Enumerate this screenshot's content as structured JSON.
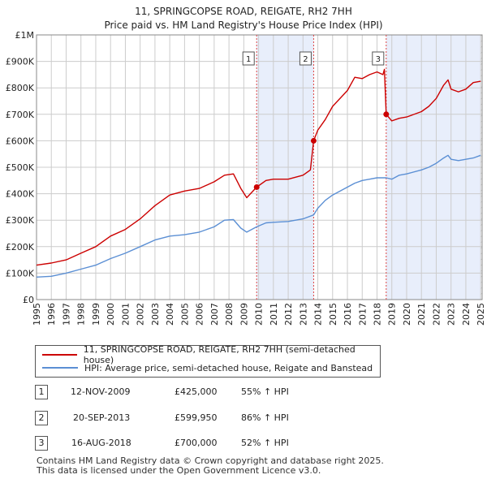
{
  "title": "11, SPRINGCOPSE ROAD, REIGATE, RH2 7HH",
  "subtitle": "Price paid vs. HM Land Registry's House Price Index (HPI)",
  "legend": {
    "property": "11, SPRINGCOPSE ROAD, REIGATE, RH2 7HH (semi-detached house)",
    "hpi": "HPI: Average price, semi-detached house, Reigate and Banstead"
  },
  "colors": {
    "property": "#cc0000",
    "hpi": "#5b8fd4",
    "shade": "#e8eefb",
    "grid": "#cccccc",
    "marker_line": "#dd4444"
  },
  "sales": [
    {
      "num": "1",
      "date": "12-NOV-2009",
      "price": "£425,000",
      "hpi": "55% ↑ HPI"
    },
    {
      "num": "2",
      "date": "20-SEP-2013",
      "price": "£599,950",
      "hpi": "86% ↑ HPI"
    },
    {
      "num": "3",
      "date": "16-AUG-2018",
      "price": "£700,000",
      "hpi": "52% ↑ HPI"
    }
  ],
  "footer": {
    "line1": "Contains HM Land Registry data © Crown copyright and database right 2025.",
    "line2": "This data is licensed under the Open Government Licence v3.0."
  },
  "chart_data": {
    "type": "line",
    "xlim": [
      1995,
      2025.1
    ],
    "ylim": [
      0,
      1000000
    ],
    "yticks": [
      {
        "v": 0,
        "label": "£0"
      },
      {
        "v": 100000,
        "label": "£100K"
      },
      {
        "v": 200000,
        "label": "£200K"
      },
      {
        "v": 300000,
        "label": "£300K"
      },
      {
        "v": 400000,
        "label": "£400K"
      },
      {
        "v": 500000,
        "label": "£500K"
      },
      {
        "v": 600000,
        "label": "£600K"
      },
      {
        "v": 700000,
        "label": "£700K"
      },
      {
        "v": 800000,
        "label": "£800K"
      },
      {
        "v": 900000,
        "label": "£900K"
      },
      {
        "v": 1000000,
        "label": "£1M"
      }
    ],
    "xticks": [
      "1995",
      "1996",
      "1997",
      "1998",
      "1999",
      "2000",
      "2001",
      "2002",
      "2003",
      "2004",
      "2005",
      "2006",
      "2007",
      "2008",
      "2009",
      "2010",
      "2011",
      "2012",
      "2013",
      "2014",
      "2015",
      "2016",
      "2017",
      "2018",
      "2019",
      "2020",
      "2021",
      "2022",
      "2023",
      "2024",
      "2025"
    ],
    "sale_markers": [
      {
        "label": "1",
        "x": 2009.87,
        "y": 425000
      },
      {
        "label": "2",
        "x": 2013.72,
        "y": 599950
      },
      {
        "label": "3",
        "x": 2018.62,
        "y": 700000
      }
    ],
    "shaded_ranges": [
      [
        2009.87,
        2013.72
      ],
      [
        2018.62,
        2025.0
      ]
    ],
    "hatched_from": 2025.0,
    "series": [
      {
        "name": "11, SPRINGCOPSE ROAD, REIGATE, RH2 7HH (semi-detached house)",
        "color": "#cc0000",
        "x": [
          1995,
          1996,
          1997,
          1998,
          1999,
          2000,
          2001,
          2002,
          2003,
          2004,
          2005,
          2006,
          2007,
          2007.7,
          2008.3,
          2008.8,
          2009.2,
          2009.87,
          2010.5,
          2011,
          2012,
          2013,
          2013.5,
          2013.72,
          2014,
          2014.5,
          2015,
          2016,
          2016.5,
          2017,
          2017.5,
          2018,
          2018.4,
          2018.5,
          2018.62,
          2019,
          2019.5,
          2020,
          2021,
          2021.5,
          2022,
          2022.5,
          2022.8,
          2023,
          2023.5,
          2024,
          2024.5,
          2025
        ],
        "y": [
          130000,
          138000,
          150000,
          175000,
          200000,
          240000,
          265000,
          305000,
          355000,
          395000,
          410000,
          420000,
          445000,
          470000,
          475000,
          420000,
          385000,
          425000,
          450000,
          455000,
          455000,
          470000,
          490000,
          599950,
          640000,
          680000,
          730000,
          790000,
          840000,
          835000,
          850000,
          860000,
          850000,
          870000,
          700000,
          675000,
          685000,
          690000,
          710000,
          730000,
          760000,
          810000,
          830000,
          795000,
          785000,
          795000,
          820000,
          825000
        ]
      },
      {
        "name": "HPI: Average price, semi-detached house, Reigate and Banstead",
        "color": "#5b8fd4",
        "x": [
          1995,
          1996,
          1997,
          1998,
          1999,
          2000,
          2001,
          2002,
          2003,
          2004,
          2005,
          2006,
          2007,
          2007.7,
          2008.3,
          2008.8,
          2009.2,
          2009.87,
          2010.5,
          2011,
          2012,
          2013,
          2013.72,
          2014,
          2014.5,
          2015,
          2016,
          2016.5,
          2017,
          2017.5,
          2018,
          2018.62,
          2019,
          2019.5,
          2020,
          2021,
          2021.5,
          2022,
          2022.5,
          2022.8,
          2023,
          2023.5,
          2024,
          2024.5,
          2025
        ],
        "y": [
          85000,
          88000,
          100000,
          115000,
          130000,
          155000,
          175000,
          200000,
          225000,
          240000,
          245000,
          255000,
          275000,
          300000,
          302000,
          270000,
          255000,
          275000,
          290000,
          292000,
          295000,
          305000,
          320000,
          345000,
          375000,
          395000,
          425000,
          440000,
          450000,
          455000,
          460000,
          460000,
          455000,
          470000,
          475000,
          490000,
          500000,
          515000,
          535000,
          545000,
          530000,
          525000,
          530000,
          535000,
          545000
        ]
      }
    ]
  }
}
